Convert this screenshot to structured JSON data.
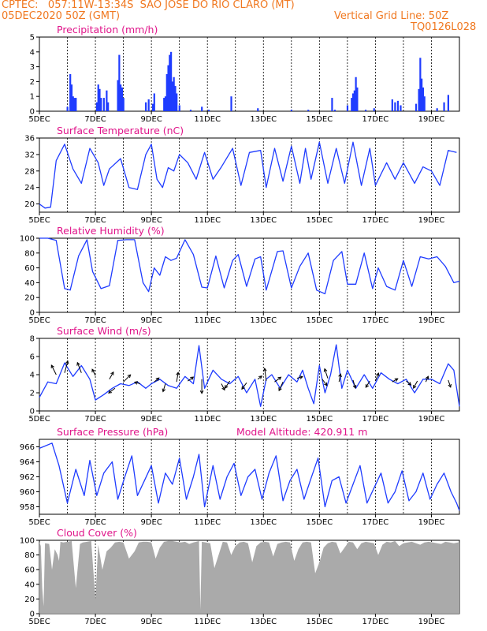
{
  "header": {
    "line1": "CPTEC:   057:11W-13:34S  SAO JOSE DO RIO CLARO (MT)",
    "line2_left": "05DEC2020 50Z (GMT)",
    "line2_right": "Vertical Grid Line: 50Z",
    "code": "TQ0126L028"
  },
  "chart_data": [
    {
      "type": "bar",
      "title": "Precipitation (mm/h)",
      "ylim": [
        0,
        5
      ],
      "yticks": [
        "0",
        "1",
        "2",
        "3",
        "4",
        "5"
      ],
      "xticks": [
        "5DEC",
        "7DEC",
        "9DEC",
        "11DEC",
        "13DEC",
        "15DEC",
        "17DEC",
        "19DEC"
      ],
      "color": "#1f3cff",
      "bars": [
        [
          6.0,
          0.3
        ],
        [
          6.1,
          2.5
        ],
        [
          6.15,
          1.8
        ],
        [
          6.2,
          1.0
        ],
        [
          6.25,
          0.9
        ],
        [
          6.3,
          0.9
        ],
        [
          7.05,
          0.6
        ],
        [
          7.1,
          1.8
        ],
        [
          7.15,
          1.5
        ],
        [
          7.2,
          0.9
        ],
        [
          7.3,
          0.9
        ],
        [
          7.4,
          1.4
        ],
        [
          7.45,
          0.6
        ],
        [
          7.8,
          2.1
        ],
        [
          7.85,
          3.8
        ],
        [
          7.9,
          1.8
        ],
        [
          7.95,
          1.6
        ],
        [
          8.0,
          0.9
        ],
        [
          8.8,
          0.6
        ],
        [
          8.9,
          0.8
        ],
        [
          9.05,
          0.5
        ],
        [
          9.1,
          1.2
        ],
        [
          9.45,
          0.9
        ],
        [
          9.5,
          1.0
        ],
        [
          9.55,
          2.5
        ],
        [
          9.6,
          3.1
        ],
        [
          9.65,
          3.8
        ],
        [
          9.7,
          4.0
        ],
        [
          9.75,
          2.0
        ],
        [
          9.8,
          2.3
        ],
        [
          9.85,
          1.7
        ],
        [
          9.9,
          1.2
        ],
        [
          10.0,
          0.4
        ],
        [
          10.4,
          0.1
        ],
        [
          10.8,
          0.3
        ],
        [
          11.05,
          0.1
        ],
        [
          11.85,
          1.0
        ],
        [
          12.8,
          0.2
        ],
        [
          14.0,
          0.1
        ],
        [
          14.6,
          0.1
        ],
        [
          15.45,
          0.9
        ],
        [
          15.55,
          0.1
        ],
        [
          16.0,
          0.4
        ],
        [
          16.15,
          0.9
        ],
        [
          16.2,
          1.2
        ],
        [
          16.25,
          1.4
        ],
        [
          16.3,
          2.3
        ],
        [
          16.35,
          1.6
        ],
        [
          16.65,
          0.1
        ],
        [
          16.95,
          0.2
        ],
        [
          17.6,
          0.8
        ],
        [
          17.7,
          0.6
        ],
        [
          17.8,
          0.7
        ],
        [
          17.9,
          0.4
        ],
        [
          18.45,
          0.5
        ],
        [
          18.55,
          1.5
        ],
        [
          18.6,
          3.6
        ],
        [
          18.65,
          2.2
        ],
        [
          18.7,
          1.6
        ],
        [
          18.75,
          1.0
        ],
        [
          19.2,
          0.2
        ],
        [
          19.45,
          0.6
        ],
        [
          19.6,
          1.1
        ]
      ]
    },
    {
      "type": "line",
      "title": "Surface Temperature (nC)",
      "ylim": [
        18,
        36
      ],
      "yticks": [
        "20",
        "24",
        "28",
        "32",
        "36"
      ],
      "xticks": [
        "5DEC",
        "7DEC",
        "9DEC",
        "11DEC",
        "13DEC",
        "15DEC",
        "17DEC",
        "19DEC"
      ],
      "color": "#1f3cff",
      "x": [
        5.0,
        5.2,
        5.4,
        5.6,
        5.9,
        6.2,
        6.5,
        6.8,
        7.1,
        7.3,
        7.5,
        7.9,
        8.2,
        8.5,
        8.8,
        9.0,
        9.2,
        9.4,
        9.6,
        9.8,
        10.0,
        10.3,
        10.6,
        10.9,
        11.2,
        11.5,
        11.9,
        12.2,
        12.5,
        12.9,
        13.1,
        13.4,
        13.7,
        14.0,
        14.3,
        14.5,
        14.7,
        15.0,
        15.3,
        15.6,
        15.9,
        16.2,
        16.5,
        16.8,
        17.0,
        17.4,
        17.7,
        18.0,
        18.4,
        18.7,
        19.0,
        19.3,
        19.6,
        19.9
      ],
      "y": [
        20.0,
        19.0,
        19.2,
        30.5,
        34.5,
        28.5,
        25.0,
        33.5,
        30.0,
        24.5,
        28.5,
        31.0,
        24.0,
        23.5,
        32.0,
        34.5,
        26.0,
        24.0,
        28.8,
        28.0,
        32.0,
        30.0,
        26.0,
        32.5,
        26.0,
        29.0,
        33.5,
        24.5,
        32.5,
        33.0,
        24.0,
        33.5,
        25.5,
        34.0,
        25.0,
        33.5,
        26.0,
        35.0,
        25.0,
        33.5,
        25.0,
        35.0,
        24.5,
        33.5,
        24.5,
        30.0,
        26.0,
        30.0,
        25.0,
        29.0,
        28.0,
        24.5,
        33.0,
        32.5
      ]
    },
    {
      "type": "line",
      "title": "Relative Humidity (%)",
      "ylim": [
        0,
        100
      ],
      "yticks": [
        "0",
        "20",
        "40",
        "60",
        "80",
        "100"
      ],
      "xticks": [
        "5DEC",
        "7DEC",
        "9DEC",
        "11DEC",
        "13DEC",
        "15DEC",
        "17DEC",
        "19DEC"
      ],
      "color": "#1f3cff",
      "x": [
        5.0,
        5.3,
        5.6,
        5.9,
        6.1,
        6.4,
        6.7,
        6.9,
        7.2,
        7.5,
        7.8,
        8.1,
        8.4,
        8.7,
        8.9,
        9.1,
        9.3,
        9.5,
        9.7,
        9.9,
        10.2,
        10.5,
        10.8,
        11.0,
        11.3,
        11.6,
        11.9,
        12.1,
        12.4,
        12.7,
        12.9,
        13.1,
        13.5,
        13.7,
        14.0,
        14.3,
        14.6,
        14.9,
        15.2,
        15.5,
        15.8,
        16.0,
        16.3,
        16.6,
        16.9,
        17.1,
        17.4,
        17.7,
        18.0,
        18.3,
        18.6,
        18.9,
        19.2,
        19.5,
        19.8,
        20.0
      ],
      "y": [
        100,
        100,
        97,
        32,
        30,
        76,
        98,
        55,
        32,
        36,
        97,
        98,
        98,
        40,
        28,
        60,
        50,
        75,
        70,
        73,
        98,
        78,
        34,
        33,
        76,
        33,
        70,
        78,
        35,
        72,
        75,
        30,
        82,
        83,
        33,
        62,
        80,
        30,
        25,
        70,
        82,
        38,
        38,
        80,
        32,
        60,
        35,
        30,
        70,
        35,
        75,
        72,
        75,
        62,
        40,
        42
      ]
    },
    {
      "type": "line",
      "title": "Surface Wind (m/s)",
      "ylim": [
        0,
        8
      ],
      "yticks": [
        "0",
        "2",
        "4",
        "6",
        "8"
      ],
      "xticks": [
        "5DEC",
        "7DEC",
        "9DEC",
        "11DEC",
        "13DEC",
        "15DEC",
        "17DEC",
        "19DEC"
      ],
      "color": "#1f3cff",
      "x": [
        5.0,
        5.3,
        5.6,
        5.9,
        6.2,
        6.5,
        6.8,
        7.0,
        7.3,
        7.6,
        7.9,
        8.2,
        8.5,
        8.8,
        9.0,
        9.3,
        9.6,
        9.9,
        10.2,
        10.5,
        10.7,
        10.9,
        11.2,
        11.5,
        11.8,
        12.1,
        12.4,
        12.7,
        12.9,
        13.1,
        13.3,
        13.6,
        13.9,
        14.2,
        14.4,
        14.6,
        14.8,
        15.0,
        15.2,
        15.4,
        15.6,
        15.8,
        16.0,
        16.3,
        16.6,
        16.9,
        17.2,
        17.5,
        17.8,
        18.1,
        18.4,
        18.7,
        19.0,
        19.3,
        19.6,
        19.8,
        20.0
      ],
      "y": [
        1.5,
        3.2,
        3.0,
        5.3,
        3.8,
        5.0,
        3.5,
        1.2,
        1.8,
        2.5,
        3.0,
        2.8,
        3.2,
        2.5,
        3.0,
        3.5,
        2.8,
        2.5,
        3.8,
        3.0,
        7.2,
        2.5,
        4.5,
        3.5,
        3.0,
        3.8,
        2.0,
        3.5,
        0.5,
        3.5,
        4.0,
        2.5,
        4.0,
        3.2,
        4.5,
        2.5,
        0.8,
        5.0,
        2.0,
        4.0,
        7.3,
        2.5,
        4.5,
        2.5,
        4.0,
        2.5,
        4.2,
        3.5,
        3.0,
        3.5,
        2.0,
        3.5,
        3.5,
        3.0,
        5.2,
        4.5,
        0.5
      ],
      "arrows": [
        [
          5.6,
          4.0,
          -0.6,
          1.2
        ],
        [
          5.9,
          4.2,
          0.4,
          1.5
        ],
        [
          6.5,
          4.2,
          -0.5,
          1.3
        ],
        [
          7.0,
          3.9,
          -0.4,
          0.8
        ],
        [
          7.5,
          3.5,
          0.5,
          0.9
        ],
        [
          7.7,
          2.5,
          -0.8,
          -0.6
        ],
        [
          8.0,
          3.2,
          0.9,
          0.9
        ],
        [
          8.6,
          3.0,
          -0.7,
          0.2
        ],
        [
          9.1,
          3.2,
          0.6,
          0.5
        ],
        [
          9.5,
          3.0,
          -0.3,
          -1.0
        ],
        [
          9.9,
          3.2,
          0.2,
          1.2
        ],
        [
          10.3,
          3.3,
          0.7,
          0.5
        ],
        [
          10.8,
          3.5,
          0.0,
          -1.8
        ],
        [
          11.5,
          3.0,
          0.4,
          -0.8
        ],
        [
          11.8,
          3.3,
          -0.6,
          -0.9
        ],
        [
          12.4,
          3.1,
          -0.6,
          -0.8
        ],
        [
          12.8,
          3.5,
          0.5,
          0.4
        ],
        [
          13.1,
          3.3,
          -0.2,
          1.6
        ],
        [
          13.4,
          3.2,
          0.8,
          0.6
        ],
        [
          13.7,
          3.2,
          -0.5,
          -1.1
        ],
        [
          14.2,
          3.6,
          0.7,
          0.2
        ],
        [
          15.1,
          3.5,
          0.6,
          -0.8
        ],
        [
          15.3,
          3.6,
          -0.4,
          1.2
        ],
        [
          15.7,
          3.2,
          0.2,
          1.0
        ],
        [
          16.2,
          3.4,
          0.3,
          -1.0
        ],
        [
          16.8,
          3.3,
          -0.5,
          -0.8
        ],
        [
          17.0,
          3.3,
          0.4,
          1.0
        ],
        [
          17.6,
          3.2,
          0.7,
          0.4
        ],
        [
          18.1,
          3.3,
          0.6,
          -0.5
        ],
        [
          18.5,
          3.3,
          -0.5,
          -0.9
        ],
        [
          18.8,
          3.2,
          0.3,
          0.7
        ],
        [
          19.6,
          3.4,
          0.3,
          -0.9
        ]
      ]
    },
    {
      "type": "line",
      "title": "Surface Pressure (hPa)",
      "annotation": "Model Altitude: 420.911 m",
      "ylim": [
        957,
        967
      ],
      "yticks": [
        "958",
        "960",
        "962",
        "964",
        "966"
      ],
      "xticks": [
        "5DEC",
        "7DEC",
        "9DEC",
        "11DEC",
        "13DEC",
        "15DEC",
        "17DEC",
        "19DEC"
      ],
      "color": "#1f3cff",
      "x": [
        5.0,
        5.2,
        5.45,
        5.7,
        6.0,
        6.3,
        6.6,
        6.8,
        7.05,
        7.3,
        7.6,
        7.8,
        8.05,
        8.3,
        8.5,
        8.75,
        9.0,
        9.25,
        9.5,
        9.75,
        10.0,
        10.25,
        10.5,
        10.7,
        10.9,
        11.2,
        11.45,
        11.7,
        11.95,
        12.2,
        12.45,
        12.7,
        12.95,
        13.2,
        13.45,
        13.7,
        13.95,
        14.2,
        14.45,
        14.7,
        14.95,
        15.2,
        15.45,
        15.7,
        15.95,
        16.2,
        16.45,
        16.7,
        16.95,
        17.2,
        17.45,
        17.7,
        17.95,
        18.2,
        18.45,
        18.7,
        18.95,
        19.2,
        19.45,
        19.7,
        19.9,
        20.0
      ],
      "y": [
        965.8,
        966.1,
        966.5,
        963.5,
        958.5,
        963.0,
        959.5,
        964.2,
        959.5,
        962.5,
        964.0,
        959.0,
        962.0,
        964.8,
        959.5,
        961.5,
        963.5,
        958.5,
        962.5,
        961.0,
        964.5,
        959.0,
        962.0,
        965.0,
        958.0,
        963.5,
        959.0,
        962.0,
        963.8,
        959.5,
        962.0,
        963.0,
        959.0,
        962.5,
        964.8,
        958.8,
        961.5,
        963.0,
        959.0,
        961.8,
        964.5,
        958.0,
        961.5,
        962.0,
        958.5,
        961.0,
        963.5,
        958.5,
        960.5,
        962.5,
        958.5,
        960.0,
        962.8,
        958.8,
        960.0,
        962.5,
        959.0,
        961.0,
        962.5,
        960.0,
        958.5,
        957.5
      ]
    },
    {
      "type": "area",
      "title": "Cloud Cover (%)",
      "ylim": [
        0,
        100
      ],
      "yticks": [
        "0",
        "20",
        "40",
        "60",
        "80",
        "100"
      ],
      "xticks": [
        "5DEC",
        "7DEC",
        "9DEC",
        "11DEC",
        "13DEC",
        "15DEC",
        "17DEC",
        "19DEC"
      ],
      "color": "#aaaaaa",
      "x": [
        5.0,
        5.05,
        5.1,
        5.15,
        5.2,
        5.35,
        5.45,
        5.55,
        5.65,
        5.7,
        5.75,
        5.85,
        6.0,
        6.15,
        6.3,
        6.45,
        6.55,
        6.7,
        6.85,
        7.0,
        7.1,
        7.25,
        7.4,
        7.55,
        7.7,
        7.85,
        8.0,
        8.2,
        8.4,
        8.55,
        8.7,
        8.85,
        9.0,
        9.15,
        9.3,
        9.45,
        9.6,
        9.75,
        9.9,
        10.05,
        10.2,
        10.35,
        10.5,
        10.6,
        10.7,
        10.75,
        10.8,
        10.95,
        11.1,
        11.25,
        11.4,
        11.55,
        11.7,
        11.85,
        12.0,
        12.15,
        12.3,
        12.45,
        12.6,
        12.75,
        12.9,
        13.05,
        13.2,
        13.35,
        13.5,
        13.65,
        13.8,
        13.95,
        14.1,
        14.25,
        14.4,
        14.55,
        14.7,
        14.85,
        15.0,
        15.15,
        15.3,
        15.45,
        15.6,
        15.75,
        15.9,
        16.05,
        16.2,
        16.35,
        16.5,
        16.65,
        16.8,
        16.95,
        17.1,
        17.25,
        17.4,
        17.55,
        17.7,
        17.85,
        18.0,
        18.15,
        18.3,
        18.45,
        18.6,
        18.75,
        18.9,
        19.05,
        19.2,
        19.35,
        19.5,
        19.65,
        19.8,
        19.95,
        20.0
      ],
      "y": [
        98,
        92,
        35,
        10,
        96,
        95,
        60,
        88,
        80,
        72,
        98,
        97,
        98,
        99,
        35,
        95,
        97,
        98,
        99,
        20,
        94,
        60,
        85,
        90,
        97,
        98,
        97,
        75,
        85,
        97,
        98,
        98,
        97,
        75,
        90,
        98,
        99,
        99,
        98,
        97,
        98,
        95,
        97,
        98,
        99,
        5,
        98,
        97,
        96,
        62,
        80,
        98,
        97,
        80,
        92,
        97,
        98,
        96,
        70,
        92,
        97,
        98,
        97,
        78,
        95,
        97,
        98,
        97,
        72,
        88,
        97,
        98,
        97,
        55,
        70,
        90,
        96,
        98,
        97,
        82,
        90,
        98,
        97,
        88,
        96,
        98,
        97,
        96,
        80,
        94,
        98,
        97,
        99,
        92,
        96,
        97,
        98,
        96,
        94,
        97,
        98,
        97,
        96,
        95,
        98,
        97,
        96,
        97,
        97
      ]
    }
  ]
}
